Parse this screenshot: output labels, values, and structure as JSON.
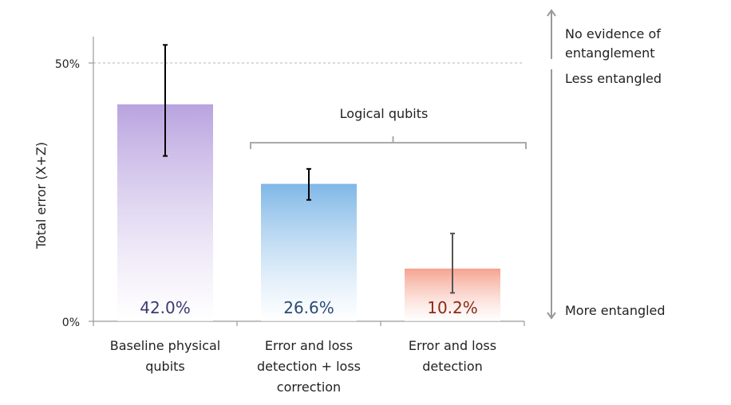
{
  "chart_data": {
    "type": "bar",
    "ylabel": "Total error (X+Z)",
    "ylim": [
      0,
      50
    ],
    "yticks": [
      "0%",
      "50%"
    ],
    "reference_line": {
      "value": 50,
      "style": "dashed"
    },
    "bracket_label": "Logical qubits",
    "categories": [
      [
        "Baseline physical",
        "qubits"
      ],
      [
        "Error and loss",
        "detection + loss",
        "correction"
      ],
      [
        "Error and loss",
        "detection"
      ]
    ],
    "values": [
      42.0,
      26.6,
      10.2
    ],
    "value_labels": [
      "42.0%",
      "26.6%",
      "10.2%"
    ],
    "error_bars": [
      [
        32.0,
        53.5
      ],
      [
        23.5,
        29.5
      ],
      [
        5.5,
        17.0
      ]
    ],
    "bar_colors": [
      "#b9a3df",
      "#7fb7e7",
      "#f5a28f"
    ],
    "label_colors": [
      "#3b3a6e",
      "#2c4a74",
      "#8a2a16"
    ],
    "right_annotations": {
      "top": [
        "No evidence of",
        "entanglement"
      ],
      "upper": "Less entangled",
      "bottom": "More entangled"
    }
  }
}
